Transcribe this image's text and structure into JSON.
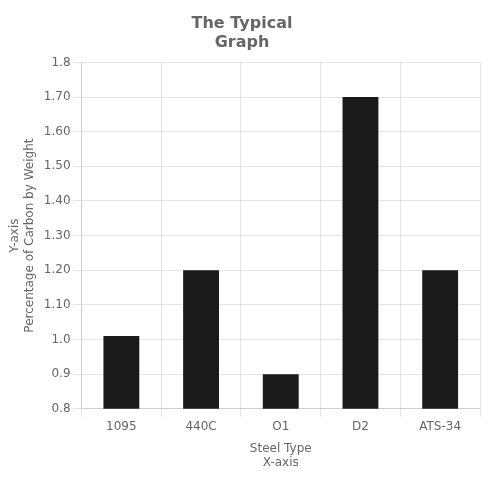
{
  "chart_data": {
    "type": "bar",
    "title": "The Typical\nGraph",
    "xlabel": "Steel Type\nX-axis",
    "ylabel": "Y-axis\nPercentage of Carbon by Weight",
    "categories": [
      "1095",
      "440C",
      "O1",
      "D2",
      "ATS-34"
    ],
    "values": [
      1.01,
      1.2,
      0.9,
      1.7,
      1.2
    ],
    "color": "#1a1a1a",
    "ylim": [
      0.8,
      1.8
    ],
    "yticks": [
      0.8,
      0.9,
      {
        "value": 1.0,
        "label": "1.0"
      },
      {
        "value": 1.1,
        "label": "1.10"
      },
      {
        "value": 1.2,
        "label": "1.20"
      },
      {
        "value": 1.3,
        "label": "1.30"
      },
      {
        "value": 1.4,
        "label": "1.40"
      },
      {
        "value": 1.5,
        "label": "1.50"
      },
      {
        "value": 1.6,
        "label": "1.60"
      },
      {
        "value": 1.7,
        "label": "1.70"
      },
      1.8
    ],
    "grid": true
  }
}
